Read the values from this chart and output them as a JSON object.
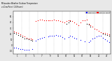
{
  "title": "Milwaukee Weather Outdoor Temperature vs Dew Point (24 Hours)",
  "background_color": "#e8e8e8",
  "plot_bg_color": "#ffffff",
  "grid_color": "#888888",
  "ylim": [
    -15,
    60
  ],
  "xlim": [
    0,
    24
  ],
  "vgrid_positions": [
    2,
    4,
    6,
    8,
    10,
    12,
    14,
    16,
    18,
    20,
    22,
    24
  ],
  "temp_x": [
    0.2,
    0.7,
    1.2,
    1.7,
    2.2,
    2.7,
    3.2,
    3.7,
    4.2,
    4.7,
    5.5,
    6.0,
    6.5,
    7.0,
    7.5,
    8.0,
    8.5,
    9.0,
    9.5,
    10.0,
    10.5,
    11.0,
    11.5,
    12.0,
    12.5,
    13.0,
    13.5,
    14.0,
    14.5,
    15.0,
    15.5,
    16.0,
    16.5,
    17.0,
    17.5,
    18.0,
    18.5,
    19.0,
    19.5,
    20.0,
    20.5,
    21.0,
    21.5,
    22.0,
    22.5,
    23.0,
    23.5
  ],
  "temp_y": [
    24,
    23,
    21,
    19,
    17,
    15,
    13,
    12,
    11,
    10,
    42,
    44,
    45,
    45,
    44,
    44,
    43,
    43,
    44,
    45,
    44,
    43,
    42,
    41,
    40,
    42,
    44,
    43,
    42,
    40,
    37,
    35,
    40,
    43,
    44,
    45,
    38,
    35,
    32,
    29,
    27,
    25,
    23,
    22,
    21,
    20,
    19
  ],
  "dew_x": [
    0.2,
    0.7,
    1.2,
    1.7,
    2.2,
    2.7,
    3.2,
    3.7,
    4.7,
    5.5,
    6.0,
    6.5,
    7.0,
    7.5,
    8.5,
    9.0,
    9.5,
    10.0,
    10.5,
    11.0,
    11.5,
    12.0,
    12.5,
    13.5,
    14.0,
    14.5,
    15.0,
    15.5,
    16.5,
    17.5,
    18.5,
    19.0,
    19.5,
    20.0,
    20.5,
    21.0,
    21.5,
    22.0,
    22.5,
    23.0,
    23.5
  ],
  "dew_y": [
    -5,
    -5,
    -6,
    -7,
    -7,
    -8,
    -8,
    -8,
    -7,
    8,
    10,
    12,
    13,
    14,
    15,
    16,
    17,
    17,
    18,
    17,
    16,
    14,
    12,
    14,
    16,
    15,
    13,
    11,
    9,
    7,
    5,
    8,
    11,
    13,
    15,
    17,
    16,
    13,
    10,
    8,
    6
  ],
  "black_x": [
    0.2,
    0.7,
    1.2,
    1.7,
    2.2,
    2.7,
    3.2,
    3.7,
    4.2,
    4.7,
    13.0,
    13.5,
    14.0,
    18.0,
    18.5,
    19.0,
    22.0,
    22.5,
    23.0,
    23.5
  ],
  "black_y": [
    22,
    20,
    18,
    16,
    14,
    12,
    11,
    10,
    9,
    8,
    38,
    40,
    42,
    38,
    36,
    32,
    20,
    19,
    18,
    17
  ],
  "temp_color": "#ff0000",
  "dew_color": "#0000ff",
  "black_color": "#000000",
  "legend_temp_label": "Outdoor Temp",
  "legend_dew_label": "Dew Point",
  "marker_size": 0.8
}
